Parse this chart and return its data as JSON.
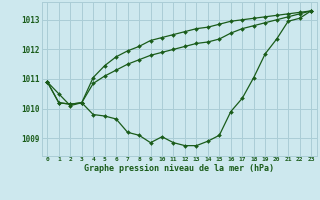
{
  "title": "Graphe pression niveau de la mer (hPa)",
  "background_color": "#cde8ee",
  "grid_color": "#aacdd6",
  "line_color": "#1a5c1a",
  "marker_color": "#1a5c1a",
  "xlim": [
    -0.5,
    23.5
  ],
  "ylim": [
    1008.4,
    1013.6
  ],
  "yticks": [
    1009,
    1010,
    1011,
    1012,
    1013
  ],
  "xtick_labels": [
    "0",
    "1",
    "2",
    "3",
    "4",
    "5",
    "6",
    "7",
    "8",
    "9",
    "10",
    "11",
    "12",
    "13",
    "14",
    "15",
    "16",
    "17",
    "18",
    "19",
    "20",
    "21",
    "22",
    "23"
  ],
  "series1": [
    1010.9,
    1010.5,
    1010.1,
    1010.2,
    1009.8,
    1009.75,
    1009.65,
    1009.2,
    1009.1,
    1008.85,
    1009.05,
    1008.85,
    1008.75,
    1008.75,
    1008.9,
    1009.1,
    1009.9,
    1010.35,
    1011.05,
    1011.85,
    1012.35,
    1012.95,
    1013.05,
    1013.3
  ],
  "series2": [
    1010.9,
    1010.2,
    1010.15,
    1010.2,
    1010.85,
    1011.1,
    1011.3,
    1011.5,
    1011.65,
    1011.8,
    1011.9,
    1012.0,
    1012.1,
    1012.2,
    1012.25,
    1012.35,
    1012.55,
    1012.7,
    1012.8,
    1012.9,
    1013.0,
    1013.1,
    1013.2,
    1013.3
  ],
  "series3": [
    1010.9,
    1010.2,
    1010.15,
    1010.2,
    1011.05,
    1011.45,
    1011.75,
    1011.95,
    1012.1,
    1012.3,
    1012.4,
    1012.5,
    1012.6,
    1012.7,
    1012.75,
    1012.85,
    1012.95,
    1013.0,
    1013.05,
    1013.1,
    1013.15,
    1013.2,
    1013.25,
    1013.3
  ]
}
